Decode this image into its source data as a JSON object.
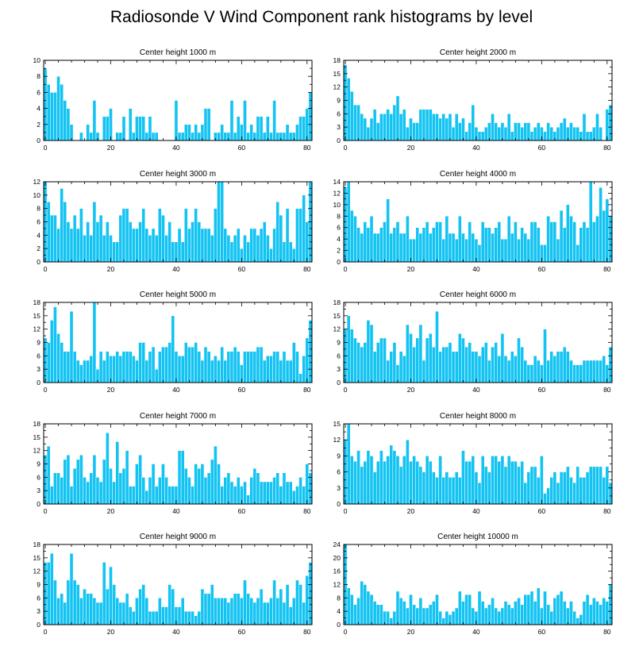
{
  "figure_title": "Radiosonde V Wind Component rank histograms by level",
  "colors": {
    "bar": "#13c3f2",
    "bar_edge": "#ffffff",
    "axis": "#000000"
  },
  "chart_data": [
    {
      "type": "bar",
      "title": "Center height 1000 m",
      "ylim": [
        0,
        10
      ],
      "yticks": [
        0,
        2,
        4,
        6,
        8,
        10
      ],
      "xlim": [
        -0.5,
        81.5
      ],
      "xticks": [
        0,
        20,
        40,
        60,
        80
      ],
      "values": [
        9,
        7,
        6,
        6,
        8,
        7,
        5,
        4,
        2,
        0,
        0,
        1,
        0,
        2,
        1,
        5,
        1,
        0,
        3,
        3,
        4,
        0,
        1,
        1,
        3,
        0,
        4,
        1,
        3,
        3,
        3,
        1,
        3,
        1,
        1,
        0,
        0,
        0,
        0,
        0,
        5,
        1,
        1,
        2,
        2,
        1,
        2,
        1,
        2,
        4,
        4,
        0,
        1,
        1,
        2,
        1,
        1,
        5,
        1,
        3,
        2,
        5,
        1,
        2,
        1,
        3,
        3,
        1,
        3,
        1,
        5,
        1,
        1,
        1,
        2,
        1,
        1,
        2,
        3,
        3,
        4,
        6
      ]
    },
    {
      "type": "bar",
      "title": "Center height 2000 m",
      "ylim": [
        0,
        18
      ],
      "yticks": [
        0,
        3,
        6,
        9,
        12,
        15,
        18
      ],
      "xlim": [
        -0.5,
        81.5
      ],
      "xticks": [
        0,
        20,
        40,
        60,
        80
      ],
      "values": [
        17,
        14,
        11,
        8,
        8,
        6,
        5,
        3,
        5,
        7,
        4,
        6,
        6,
        7,
        6,
        8,
        10,
        6,
        7,
        3,
        5,
        4,
        4,
        7,
        7,
        7,
        7,
        6,
        6,
        5,
        6,
        5,
        6,
        3,
        6,
        4,
        5,
        2,
        4,
        8,
        3,
        2,
        2,
        3,
        4,
        6,
        4,
        3,
        4,
        3,
        6,
        2,
        4,
        4,
        3,
        4,
        4,
        2,
        3,
        4,
        3,
        2,
        4,
        3,
        2,
        3,
        4,
        5,
        3,
        4,
        3,
        3,
        2,
        6,
        2,
        2,
        3,
        6,
        3,
        0,
        7,
        8
      ]
    },
    {
      "type": "bar",
      "title": "Center height 3000 m",
      "ylim": [
        0,
        12
      ],
      "yticks": [
        0,
        2,
        4,
        6,
        8,
        10,
        12
      ],
      "xlim": [
        -0.5,
        81.5
      ],
      "xticks": [
        0,
        20,
        40,
        60,
        80
      ],
      "values": [
        12,
        9,
        7,
        7,
        5,
        11,
        9,
        6,
        5,
        7,
        5,
        8,
        4,
        6,
        4,
        9,
        6,
        7,
        4,
        6,
        4,
        3,
        3,
        7,
        8,
        8,
        6,
        5,
        5,
        6,
        8,
        5,
        4,
        5,
        4,
        8,
        7,
        4,
        6,
        3,
        3,
        5,
        3,
        8,
        5,
        6,
        8,
        6,
        5,
        5,
        5,
        4,
        8,
        12,
        12,
        5,
        4,
        3,
        4,
        5,
        2,
        4,
        3,
        5,
        5,
        4,
        5,
        6,
        4,
        2,
        5,
        9,
        7,
        3,
        8,
        3,
        2,
        8,
        8,
        10,
        6,
        12
      ]
    },
    {
      "type": "bar",
      "title": "Center height 4000 m",
      "ylim": [
        0,
        14
      ],
      "yticks": [
        0,
        2,
        4,
        6,
        8,
        10,
        12,
        14
      ],
      "xlim": [
        -0.5,
        81.5
      ],
      "xticks": [
        0,
        20,
        40,
        60,
        80
      ],
      "values": [
        13,
        14,
        9,
        8,
        6,
        5,
        7,
        6,
        8,
        5,
        5,
        6,
        7,
        11,
        5,
        6,
        7,
        5,
        5,
        8,
        4,
        4,
        6,
        5,
        6,
        7,
        5,
        6,
        7,
        7,
        4,
        8,
        5,
        5,
        4,
        8,
        5,
        4,
        7,
        5,
        4,
        3,
        7,
        6,
        6,
        5,
        6,
        7,
        4,
        4,
        8,
        5,
        7,
        4,
        6,
        5,
        4,
        7,
        7,
        6,
        3,
        3,
        8,
        7,
        7,
        4,
        9,
        6,
        10,
        8,
        7,
        3,
        6,
        7,
        6,
        14,
        7,
        8,
        13,
        9,
        11,
        8
      ]
    },
    {
      "type": "bar",
      "title": "Center height 5000 m",
      "ylim": [
        0,
        18
      ],
      "yticks": [
        0,
        3,
        6,
        9,
        12,
        15,
        18
      ],
      "xlim": [
        -0.5,
        81.5
      ],
      "xticks": [
        0,
        20,
        40,
        60,
        80
      ],
      "values": [
        10,
        9,
        14,
        17,
        11,
        9,
        7,
        7,
        16,
        7,
        5,
        4,
        5,
        5,
        6,
        18,
        3,
        7,
        5,
        7,
        6,
        6,
        7,
        6,
        7,
        7,
        7,
        6,
        5,
        9,
        9,
        5,
        7,
        8,
        3,
        7,
        8,
        8,
        9,
        15,
        7,
        6,
        6,
        9,
        8,
        8,
        9,
        7,
        5,
        8,
        7,
        5,
        6,
        5,
        8,
        5,
        7,
        7,
        8,
        7,
        4,
        7,
        7,
        7,
        7,
        8,
        8,
        5,
        6,
        6,
        7,
        7,
        5,
        7,
        5,
        5,
        9,
        7,
        2,
        6,
        10,
        14
      ]
    },
    {
      "type": "bar",
      "title": "Center height 6000 m",
      "ylim": [
        0,
        18
      ],
      "yticks": [
        0,
        3,
        6,
        9,
        12,
        15,
        18
      ],
      "xlim": [
        -0.5,
        81.5
      ],
      "xticks": [
        0,
        20,
        40,
        60,
        80
      ],
      "values": [
        12,
        15,
        12,
        10,
        9,
        8,
        9,
        14,
        13,
        7,
        9,
        10,
        10,
        5,
        7,
        9,
        4,
        7,
        6,
        13,
        11,
        8,
        10,
        13,
        5,
        10,
        11,
        8,
        16,
        7,
        8,
        8,
        9,
        7,
        7,
        11,
        10,
        8,
        9,
        7,
        7,
        6,
        8,
        9,
        5,
        8,
        9,
        6,
        11,
        6,
        5,
        7,
        6,
        10,
        8,
        5,
        4,
        4,
        6,
        5,
        4,
        12,
        5,
        7,
        6,
        7,
        7,
        8,
        7,
        5,
        4,
        4,
        4,
        5,
        5,
        5,
        5,
        5,
        5,
        6,
        4,
        8
      ]
    },
    {
      "type": "bar",
      "title": "Center height 7000 m",
      "ylim": [
        0,
        18
      ],
      "yticks": [
        0,
        3,
        6,
        9,
        12,
        15,
        18
      ],
      "xlim": [
        -0.5,
        81.5
      ],
      "xticks": [
        0,
        20,
        40,
        60,
        80
      ],
      "values": [
        11,
        13,
        4,
        7,
        7,
        6,
        10,
        11,
        4,
        8,
        10,
        11,
        6,
        5,
        7,
        11,
        6,
        5,
        10,
        16,
        8,
        5,
        14,
        7,
        8,
        12,
        4,
        4,
        9,
        11,
        6,
        3,
        6,
        9,
        4,
        6,
        9,
        6,
        4,
        4,
        4,
        12,
        12,
        8,
        6,
        4,
        9,
        8,
        9,
        6,
        7,
        10,
        13,
        9,
        4,
        6,
        7,
        5,
        4,
        6,
        4,
        5,
        2,
        6,
        8,
        7,
        5,
        5,
        5,
        5,
        6,
        7,
        4,
        7,
        5,
        5,
        3,
        4,
        6,
        4,
        9,
        7
      ]
    },
    {
      "type": "bar",
      "title": "Center height 8000 m",
      "ylim": [
        0,
        15
      ],
      "yticks": [
        0,
        3,
        6,
        9,
        12,
        15
      ],
      "xlim": [
        -0.5,
        81.5
      ],
      "xticks": [
        0,
        20,
        40,
        60,
        80
      ],
      "values": [
        12,
        15,
        9,
        8,
        10,
        7,
        8,
        10,
        9,
        6,
        8,
        10,
        8,
        9,
        11,
        10,
        9,
        7,
        9,
        12,
        8,
        9,
        8,
        7,
        6,
        9,
        8,
        6,
        5,
        9,
        5,
        6,
        5,
        5,
        6,
        5,
        10,
        8,
        8,
        9,
        6,
        4,
        9,
        7,
        6,
        9,
        9,
        8,
        9,
        7,
        9,
        8,
        8,
        7,
        8,
        4,
        6,
        7,
        7,
        5,
        9,
        2,
        3,
        5,
        6,
        4,
        6,
        6,
        7,
        5,
        4,
        7,
        5,
        5,
        6,
        7,
        7,
        7,
        7,
        5,
        7,
        4
      ]
    },
    {
      "type": "bar",
      "title": "Center height 9000 m",
      "ylim": [
        0,
        18
      ],
      "yticks": [
        0,
        3,
        6,
        9,
        12,
        15,
        18
      ],
      "xlim": [
        -0.5,
        81.5
      ],
      "xticks": [
        0,
        20,
        40,
        60,
        80
      ],
      "values": [
        14,
        14,
        16,
        10,
        6,
        7,
        5,
        10,
        16,
        10,
        9,
        6,
        8,
        7,
        7,
        6,
        5,
        5,
        14,
        8,
        13,
        9,
        6,
        5,
        5,
        7,
        4,
        3,
        6,
        8,
        9,
        6,
        3,
        3,
        3,
        6,
        4,
        4,
        9,
        8,
        4,
        4,
        6,
        3,
        3,
        3,
        2,
        3,
        8,
        7,
        7,
        9,
        6,
        6,
        6,
        6,
        5,
        6,
        7,
        7,
        6,
        10,
        7,
        6,
        5,
        6,
        8,
        5,
        5,
        6,
        10,
        6,
        8,
        5,
        9,
        4,
        6,
        10,
        9,
        5,
        11,
        14
      ]
    },
    {
      "type": "bar",
      "title": "Center height 10000 m",
      "ylim": [
        0,
        24
      ],
      "yticks": [
        0,
        4,
        8,
        12,
        16,
        20,
        24
      ],
      "xlim": [
        -0.5,
        81.5
      ],
      "xticks": [
        0,
        20,
        40,
        60,
        80
      ],
      "values": [
        24,
        11,
        9,
        6,
        8,
        13,
        12,
        10,
        9,
        7,
        6,
        6,
        4,
        4,
        2,
        4,
        10,
        8,
        7,
        5,
        9,
        6,
        5,
        8,
        5,
        5,
        6,
        7,
        9,
        4,
        2,
        4,
        3,
        4,
        5,
        10,
        7,
        9,
        9,
        5,
        4,
        10,
        7,
        5,
        6,
        8,
        5,
        4,
        5,
        7,
        6,
        5,
        7,
        8,
        6,
        9,
        9,
        10,
        7,
        11,
        5,
        10,
        6,
        4,
        8,
        9,
        10,
        7,
        5,
        7,
        4,
        2,
        3,
        7,
        9,
        6,
        8,
        7,
        6,
        8,
        7,
        12
      ]
    }
  ]
}
